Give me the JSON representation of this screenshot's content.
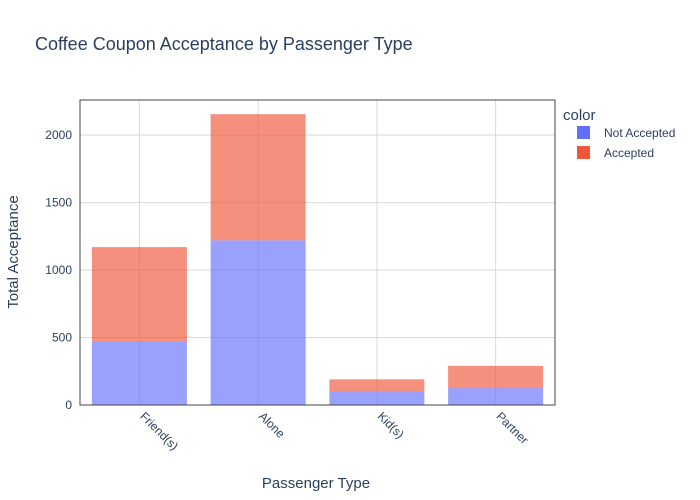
{
  "chart_data": {
    "type": "bar",
    "stacked": true,
    "title": "Coffee Coupon Acceptance by Passenger Type",
    "xlabel": "Passenger Type",
    "ylabel": "Total Acceptance",
    "categories": [
      "Friend(s)",
      "Alone",
      "Kid(s)",
      "Partner"
    ],
    "series": [
      {
        "name": "Not Accepted",
        "values": [
          470,
          1220,
          100,
          125
        ],
        "color": "#636efa"
      },
      {
        "name": "Accepted",
        "values": [
          700,
          935,
          90,
          165
        ],
        "color": "#ef553b"
      }
    ],
    "ylim": [
      0,
      2260
    ],
    "yticks": [
      0,
      500,
      1000,
      1500,
      2000
    ],
    "ytick_labels": [
      "0",
      "500",
      "1000",
      "1500",
      "2000"
    ],
    "grid": true,
    "bar_opacity": 0.65,
    "legend": {
      "title": "color",
      "placement": "top-right"
    }
  }
}
